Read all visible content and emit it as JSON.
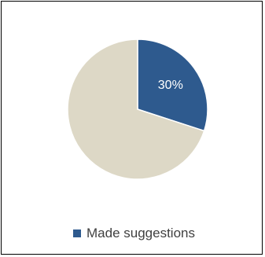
{
  "chart_data": {
    "type": "pie",
    "slices": [
      {
        "label": "Made suggestions",
        "value": 30,
        "color": "#2E5A8E",
        "data_label": "30%"
      },
      {
        "label": "",
        "value": 70,
        "color": "#DDD8C6",
        "data_label": ""
      }
    ],
    "legend": {
      "position": "bottom",
      "entries": [
        "Made suggestions"
      ]
    },
    "start_angle_deg": 0,
    "direction": "clockwise"
  }
}
